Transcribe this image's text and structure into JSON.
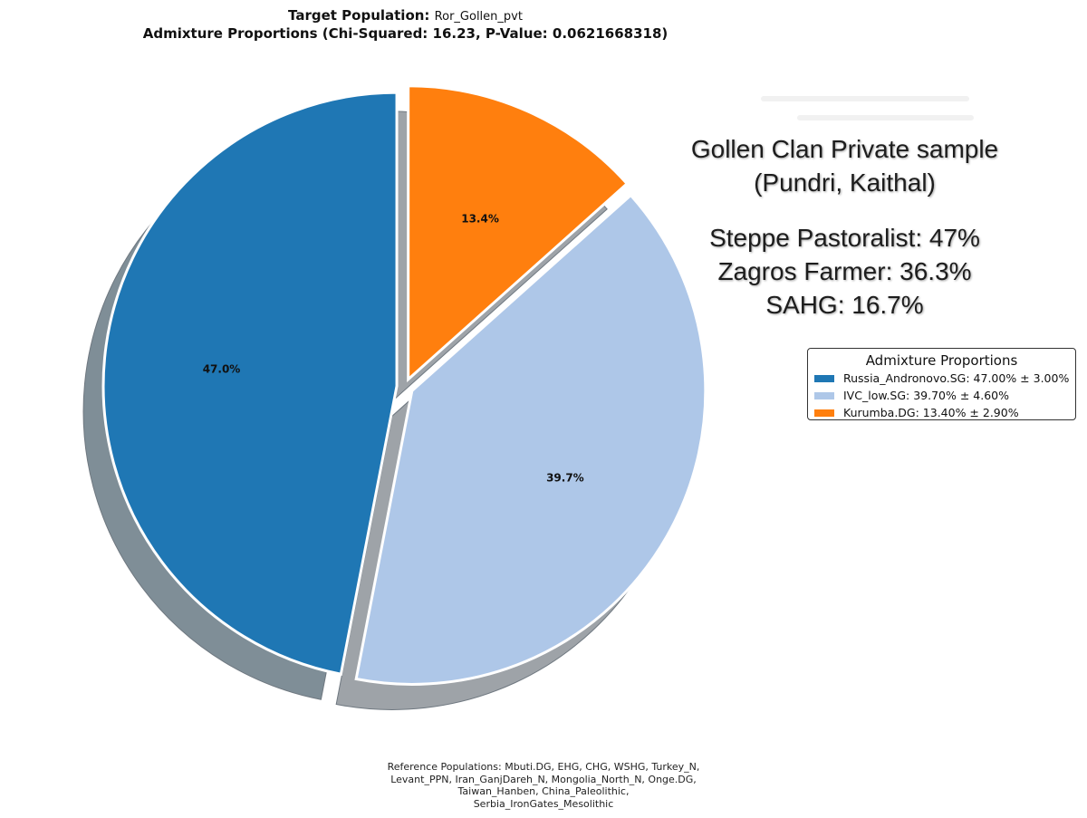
{
  "title": {
    "line1_prefix": "Target Population:",
    "population": "Ror_Gollen_pvt",
    "line2": "Admixture Proportions (Chi-Squared: 16.23, P-Value: 0.0621668318)"
  },
  "overlay": {
    "heading_line1": "Gollen Clan Private sample",
    "heading_line2": "(Pundri, Kaithal)",
    "stats": [
      "Steppe Pastoralist: 47%",
      "Zagros Farmer: 36.3%",
      "SAHG: 16.7%"
    ]
  },
  "legend": {
    "title": "Admixture Proportions",
    "items": [
      "Russia_Andronovo.SG: 47.00% ± 3.00%",
      "IVC_low.SG: 39.70% ± 4.60%",
      "Kurumba.DG: 13.40% ± 2.90%"
    ]
  },
  "reference": {
    "lines": [
      "Reference Populations: Mbuti.DG, EHG, CHG, WSHG, Turkey_N,",
      "Levant_PPN, Iran_GanjDareh_N, Mongolia_North_N, Onge.DG,",
      "Taiwan_Hanben, China_Paleolithic,",
      "Serbia_IronGates_Mesolithic"
    ]
  },
  "chart_data": {
    "type": "pie",
    "title": "Admixture Proportions (Chi-Squared: 16.23, P-Value: 0.0621668318)",
    "categories": [
      "Russia_Andronovo.SG",
      "IVC_low.SG",
      "Kurumba.DG"
    ],
    "values": [
      47.0,
      39.7,
      13.4
    ],
    "errors": [
      3.0,
      4.6,
      2.9
    ],
    "labels": [
      "47.0%",
      "39.7%",
      "13.4%"
    ],
    "colors": [
      "#1f77b4",
      "#aec7e8",
      "#ff7f0e"
    ],
    "shadow": true,
    "exploded": true,
    "start_angle": "90 deg, clockwise",
    "legend_position": "right"
  }
}
